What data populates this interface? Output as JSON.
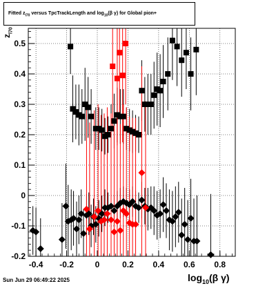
{
  "header": {
    "title_pre": "Fitted  z",
    "title_sub1": "l70",
    "title_mid": "  versus TpcTrackLength and log",
    "title_sub2": "10",
    "title_post": "(β  γ) for Global pion+"
  },
  "footer": {
    "timestamp": "Sun Jun 29 06:49:22 2025"
  },
  "axes": {
    "xlabel_main": "log",
    "xlabel_sub": "10",
    "xlabel_post": "(β γ)",
    "ylabel_main": "z",
    "ylabel_sub": "l70"
  },
  "chart_data": {
    "type": "scatter",
    "xlim": [
      -0.45,
      0.9
    ],
    "ylim": [
      -0.2,
      0.55
    ],
    "x_ticks": [
      "-0.4",
      "-0.2",
      "0",
      "0.2",
      "0.4",
      "0.6",
      "0.8"
    ],
    "x_tick_values": [
      -0.4,
      -0.2,
      0,
      0.2,
      0.4,
      0.6,
      0.8
    ],
    "y_ticks": [
      "-0.2",
      "-0.1",
      "0",
      "0.1",
      "0.2",
      "0.3",
      "0.4",
      "0.5"
    ],
    "y_tick_values": [
      -0.2,
      -0.1,
      0,
      0.1,
      0.2,
      0.3,
      0.4,
      0.5
    ],
    "grid": true,
    "colors": {
      "black": "#000000",
      "red": "#ff0000"
    },
    "series": [
      {
        "marker": "square",
        "color": "#000000",
        "points": [
          [
            -0.175,
            0.49
          ],
          [
            -0.16,
            0.285
          ],
          [
            -0.14,
            0.275
          ],
          [
            -0.12,
            0.265
          ],
          [
            -0.1,
            0.26
          ],
          [
            -0.08,
            0.3
          ],
          [
            -0.06,
            0.29
          ],
          [
            -0.04,
            0.26
          ],
          [
            -0.01,
            0.22
          ],
          [
            0.01,
            0.22
          ],
          [
            0.03,
            0.215
          ],
          [
            0.05,
            0.195
          ],
          [
            0.07,
            0.2
          ],
          [
            0.09,
            0.22
          ],
          [
            0.11,
            0.245
          ],
          [
            0.13,
            0.265
          ],
          [
            0.15,
            0.26
          ],
          [
            0.17,
            0.26
          ],
          [
            0.19,
            0.22
          ],
          [
            0.21,
            0.215
          ],
          [
            0.23,
            0.21
          ],
          [
            0.25,
            0.205
          ],
          [
            0.27,
            0.2
          ],
          [
            0.29,
            0.345
          ],
          [
            0.31,
            0.3
          ],
          [
            0.33,
            0.3
          ],
          [
            0.35,
            0.3
          ],
          [
            0.37,
            0.33
          ],
          [
            0.39,
            0.35
          ],
          [
            0.41,
            0.345
          ],
          [
            0.43,
            0.375
          ],
          [
            0.46,
            0.4
          ],
          [
            0.49,
            0.51
          ],
          [
            0.52,
            0.49
          ],
          [
            0.55,
            0.445
          ],
          [
            0.58,
            0.47
          ],
          [
            0.61,
            0.4
          ],
          [
            0.645,
            0.48
          ]
        ],
        "errors": [
          0.09,
          0.11,
          0.09,
          0.1,
          0.09,
          0.12,
          0.1,
          0.09,
          0.07,
          0.07,
          0.07,
          0.06,
          0.06,
          0.08,
          0.09,
          0.09,
          0.09,
          0.09,
          0.07,
          0.07,
          0.07,
          0.06,
          0.06,
          0.1,
          0.09,
          0.1,
          0.1,
          0.11,
          0.12,
          0.12,
          0.12,
          0.12,
          0.13,
          0.13,
          0.12,
          0.12,
          0.12,
          0.15
        ]
      },
      {
        "marker": "square",
        "color": "#ff0000",
        "points": [
          [
            0.1,
            0.425
          ],
          [
            0.13,
            0.385
          ],
          [
            0.145,
            0.47
          ],
          [
            0.165,
            0.395
          ],
          [
            0.185,
            0.5
          ]
        ],
        "errors": [
          0.2,
          0.22,
          0.2,
          0.22,
          0.2
        ]
      },
      {
        "marker": "diamond",
        "color": "#000000",
        "points": [
          [
            -0.42,
            -0.115
          ],
          [
            -0.4,
            -0.12
          ],
          [
            -0.37,
            -0.175
          ],
          [
            -0.23,
            -0.145
          ],
          [
            -0.205,
            -0.035
          ],
          [
            -0.19,
            -0.085
          ],
          [
            -0.17,
            -0.08
          ],
          [
            -0.155,
            -0.075
          ],
          [
            -0.135,
            -0.11
          ],
          [
            -0.12,
            -0.08
          ],
          [
            -0.105,
            -0.06
          ],
          [
            -0.09,
            -0.125
          ],
          [
            -0.07,
            -0.065
          ],
          [
            -0.055,
            -0.06
          ],
          [
            -0.04,
            -0.1
          ],
          [
            -0.025,
            -0.07
          ],
          [
            -0.01,
            -0.095
          ],
          [
            0.01,
            -0.075
          ],
          [
            0.03,
            -0.06
          ],
          [
            0.05,
            -0.04
          ],
          [
            0.07,
            -0.04
          ],
          [
            0.09,
            -0.035
          ],
          [
            0.11,
            -0.05
          ],
          [
            0.13,
            -0.035
          ],
          [
            0.15,
            -0.025
          ],
          [
            0.17,
            -0.02
          ],
          [
            0.19,
            -0.025
          ],
          [
            0.21,
            -0.03
          ],
          [
            0.23,
            -0.02
          ],
          [
            0.25,
            -0.035
          ],
          [
            0.27,
            -0.04
          ],
          [
            0.29,
            -0.015
          ],
          [
            0.31,
            -0.035
          ],
          [
            0.33,
            -0.045
          ],
          [
            0.35,
            -0.04
          ],
          [
            0.37,
            -0.05
          ],
          [
            0.39,
            -0.065
          ],
          [
            0.41,
            -0.06
          ],
          [
            0.43,
            -0.03
          ],
          [
            0.45,
            -0.05
          ],
          [
            0.47,
            -0.08
          ],
          [
            0.49,
            -0.085
          ],
          [
            0.51,
            -0.07
          ],
          [
            0.53,
            -0.055
          ],
          [
            0.55,
            -0.13
          ],
          [
            0.57,
            -0.095
          ],
          [
            0.59,
            -0.145
          ],
          [
            0.61,
            -0.075
          ],
          [
            0.63,
            -0.15
          ],
          [
            0.65,
            -0.15
          ],
          [
            0.74,
            -0.195
          ]
        ],
        "errors": [
          0.08,
          0.08,
          0.1,
          0.12,
          0.14,
          0.12,
          0.1,
          0.09,
          0.09,
          0.08,
          0.08,
          0.08,
          0.07,
          0.07,
          0.07,
          0.06,
          0.06,
          0.06,
          0.06,
          0.06,
          0.05,
          0.05,
          0.05,
          0.05,
          0.05,
          0.05,
          0.05,
          0.05,
          0.05,
          0.05,
          0.05,
          0.06,
          0.06,
          0.07,
          0.07,
          0.08,
          0.08,
          0.08,
          0.09,
          0.09,
          0.1,
          0.1,
          0.1,
          0.1,
          0.12,
          0.12,
          0.13,
          0.13,
          0.14,
          0.15,
          0.2
        ]
      },
      {
        "marker": "diamond",
        "color": "#ff0000",
        "points": [
          [
            -0.07,
            -0.045
          ],
          [
            -0.05,
            -0.11
          ],
          [
            -0.02,
            -0.07
          ],
          [
            0.005,
            -0.05
          ],
          [
            0.025,
            -0.085
          ],
          [
            0.045,
            -0.08
          ],
          [
            0.065,
            -0.06
          ],
          [
            0.09,
            -0.08
          ],
          [
            0.11,
            -0.12
          ],
          [
            0.13,
            -0.085
          ],
          [
            0.15,
            -0.115
          ],
          [
            0.17,
            -0.05
          ],
          [
            0.19,
            -0.06
          ],
          [
            0.21,
            -0.09
          ],
          [
            0.23,
            -0.095
          ],
          [
            0.25,
            -0.095
          ],
          [
            0.29,
            0.075
          ],
          [
            0.315,
            -0.04
          ]
        ],
        "errors": [
          0.35,
          0.35,
          0.35,
          0.35,
          0.35,
          0.35,
          0.35,
          0.35,
          0.35,
          0.35,
          0.35,
          0.35,
          0.35,
          0.35,
          0.35,
          0.35,
          0.35,
          0.35
        ]
      }
    ]
  }
}
